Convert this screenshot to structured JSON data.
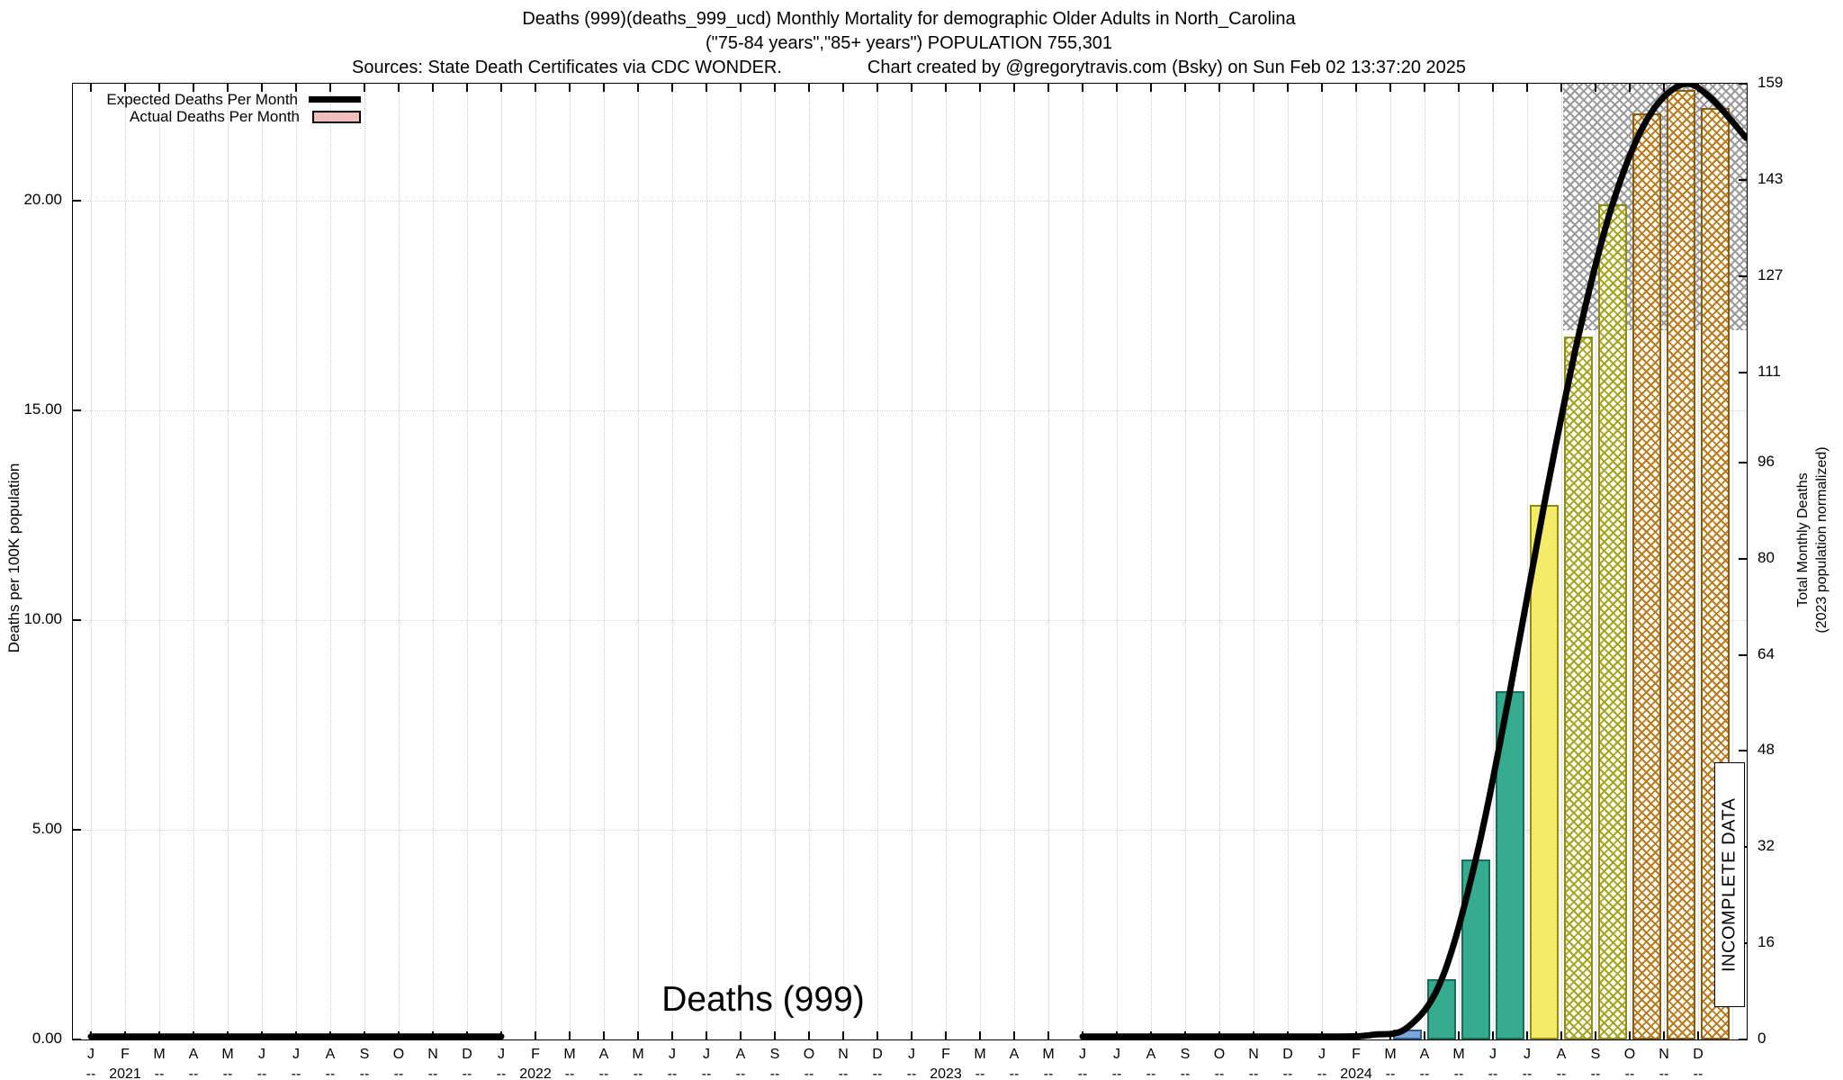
{
  "title": {
    "line1": "Deaths (999)(deaths_999_ucd) Monthly Mortality for demographic Older Adults in North_Carolina",
    "line2": "(\"75-84 years\",\"85+ years\") POPULATION 755,301",
    "sources": "Sources: State Death Certificates via CDC WONDER.",
    "credit": "Chart created by @gregorytravis.com (Bsky) on Sun Feb 02 13:37:20 2025"
  },
  "legend": {
    "expected": {
      "label": "Expected Deaths Per Month",
      "color": "#000000"
    },
    "actual": {
      "label": "Actual Deaths Per Month",
      "swatch_color": "#f2bdbd"
    }
  },
  "labels": {
    "center_title": "Deaths (999)",
    "incomplete": "INCOMPLETE DATA",
    "y_left": "Deaths per 100K population",
    "y_right_line1": "Total Monthly Deaths",
    "y_right_line2": "(2023 population normalized)"
  },
  "chart_data": {
    "type": "bar",
    "title": "Deaths (999)",
    "x_months": [
      "J",
      "F",
      "M",
      "A",
      "M",
      "J",
      "J",
      "A",
      "S",
      "O",
      "N",
      "D"
    ],
    "years": [
      "2021",
      "2022",
      "2023",
      "2024"
    ],
    "dash": "--",
    "left_axis": {
      "label": "Deaths per 100K population",
      "max": 22.8,
      "ticks": [
        {
          "label": "0.00",
          "value": 0
        },
        {
          "label": "5.00",
          "value": 5
        },
        {
          "label": "10.00",
          "value": 10
        },
        {
          "label": "15.00",
          "value": 15
        },
        {
          "label": "20.00",
          "value": 20
        }
      ]
    },
    "right_axis": {
      "label": "Total Monthly Deaths (2023 population normalized)",
      "max": 159,
      "ticks": [
        {
          "label": "0",
          "value": 0
        },
        {
          "label": "16",
          "value": 16
        },
        {
          "label": "32",
          "value": 32
        },
        {
          "label": "48",
          "value": 48
        },
        {
          "label": "64",
          "value": 64
        },
        {
          "label": "80",
          "value": 80
        },
        {
          "label": "96",
          "value": 96
        },
        {
          "label": "111",
          "value": 111
        },
        {
          "label": "127",
          "value": 127
        },
        {
          "label": "143",
          "value": 143
        },
        {
          "label": "159",
          "value": 159
        }
      ]
    },
    "bars": [
      {
        "month": "2024-03",
        "index": 38,
        "value": 1.6,
        "style": "blue"
      },
      {
        "month": "2024-04",
        "index": 39,
        "value": 10,
        "style": "teal"
      },
      {
        "month": "2024-05",
        "index": 40,
        "value": 30,
        "style": "teal"
      },
      {
        "month": "2024-06",
        "index": 41,
        "value": 58,
        "style": "teal"
      },
      {
        "month": "2024-07",
        "index": 42,
        "value": 89,
        "style": "yellow"
      },
      {
        "month": "2024-08",
        "index": 43,
        "value": 117,
        "style": "olive_hatch"
      },
      {
        "month": "2024-09",
        "index": 44,
        "value": 139,
        "style": "olive_hatch"
      },
      {
        "month": "2024-10",
        "index": 45,
        "value": 154,
        "style": "orange_hatch"
      },
      {
        "month": "2024-11",
        "index": 46,
        "value": 158,
        "style": "orange_hatch"
      },
      {
        "month": "2024-12",
        "index": 47,
        "value": 155,
        "style": "orange_hatch"
      }
    ],
    "styles": {
      "blue": {
        "fill": "#7aa6d8",
        "border": "#2e5f93",
        "hatch": false
      },
      "teal": {
        "fill": "#35ab8f",
        "border": "#1a6b57",
        "hatch": false
      },
      "yellow": {
        "fill": "#f4eb67",
        "border": "#8f8a14",
        "hatch": false
      },
      "olive_hatch": {
        "fill": "#ffffff",
        "border": "#8f8d18",
        "hatch": true,
        "hatch_color": "#a6a41e"
      },
      "orange_hatch": {
        "fill": "#ffffff",
        "border": "#8a5c12",
        "hatch": true,
        "hatch_color": "#b97c1d"
      },
      "incomplete_region": {
        "hatch_color": "#9a9a9a"
      }
    },
    "expected_line": {
      "name": "Expected Deaths Per Month",
      "color": "#000000",
      "stroke_width": 7,
      "segments": [
        [
          [
            0,
            0.5
          ],
          [
            6,
            0.5
          ],
          [
            12,
            0.5
          ]
        ],
        [
          [
            29,
            0.5
          ],
          [
            33,
            0.5
          ],
          [
            36.5,
            0.5
          ],
          [
            37.5,
            0.8
          ],
          [
            38.5,
            2
          ],
          [
            39.5,
            10
          ],
          [
            40.5,
            30
          ],
          [
            41.5,
            58
          ],
          [
            42.5,
            89
          ],
          [
            43.5,
            117
          ],
          [
            44.5,
            139
          ],
          [
            45.5,
            153
          ],
          [
            46.5,
            158.8
          ],
          [
            47.3,
            157
          ],
          [
            48.4,
            150
          ]
        ]
      ]
    },
    "incomplete_region": {
      "start_index": 43,
      "top_value": 159,
      "bottom_value": 118,
      "label": "INCOMPLETE DATA"
    }
  }
}
